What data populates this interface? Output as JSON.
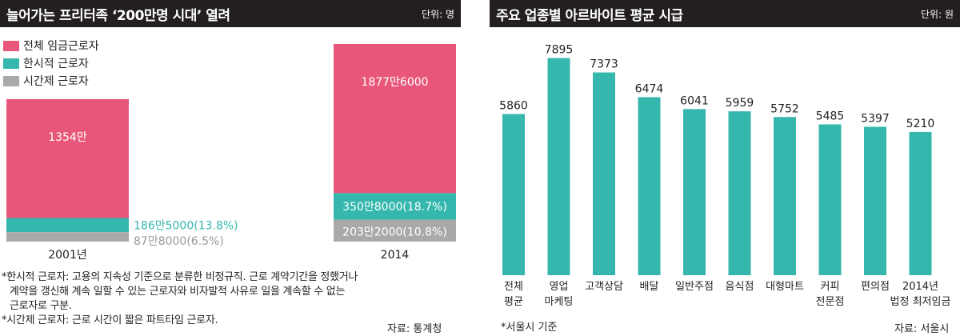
{
  "left": {
    "title": "늘어가는 프리터족 ‘200만명 시대’ 열려",
    "unit": "단위: 명",
    "legend": [
      {
        "label": "전체 임금근로자",
        "color": "#e8577a"
      },
      {
        "label": "한시적 근로자",
        "color": "#35b7ad"
      },
      {
        "label": "시간제 근로자",
        "color": "#a9a9a9"
      }
    ],
    "notes": [
      "*한시적 근로자: 고용의 지속성 기준으로 분류한 비정규직. 근로 계약기간을 정했거나",
      "계약을 갱신해 계속 일할 수 있는 근로자와 비자발적 사유로 일을 계속할 수 없는",
      "근로자로 구분.",
      "*시간제 근로자: 근로 시간이 짧은 파트타임 근로자."
    ],
    "source": "자료: 통계청"
  },
  "right": {
    "title": "주요 업종별 아르바이트 평균 시급",
    "unit": "단위: 원",
    "note": "*서울시 기준",
    "source": "자료: 서울시"
  },
  "chart_data": [
    {
      "type": "bar",
      "categories": [
        "2001년",
        "2014"
      ],
      "series": [
        {
          "name": "전체 임금근로자",
          "values": [
            13540000,
            18776000
          ],
          "labels": [
            "1354만",
            "1877만6000"
          ],
          "color": "#e8577a"
        },
        {
          "name": "한시적 근로자",
          "values": [
            1865000,
            3508000
          ],
          "labels": [
            "186만5000(13.8%)",
            "350만8000(18.7%)"
          ],
          "color": "#35b7ad"
        },
        {
          "name": "시간제 근로자",
          "values": [
            878000,
            2032000
          ],
          "labels": [
            "87만8000(6.5%)",
            "203만2000(10.8%)"
          ],
          "color": "#a9a9a9"
        }
      ],
      "ylim": [
        0,
        19000000
      ]
    },
    {
      "type": "bar",
      "categories": [
        [
          "전체",
          "평균"
        ],
        [
          "영업",
          "마케팅"
        ],
        [
          "고객상담"
        ],
        [
          "배달"
        ],
        [
          "일반주점"
        ],
        [
          "음식점"
        ],
        [
          "대형마트"
        ],
        [
          "커피",
          "전문점"
        ],
        [
          "편의점"
        ],
        [
          "2014년",
          "법정 최저임금"
        ]
      ],
      "values": [
        5860,
        7895,
        7373,
        6474,
        6041,
        5959,
        5752,
        5485,
        5397,
        5210
      ],
      "labels": [
        "5860",
        "7895",
        "7373",
        "6474",
        "6041",
        "5959",
        "5752",
        "5485",
        "5397",
        "5210"
      ],
      "color": "#35b7ad",
      "ylim": [
        0,
        8000
      ]
    }
  ]
}
